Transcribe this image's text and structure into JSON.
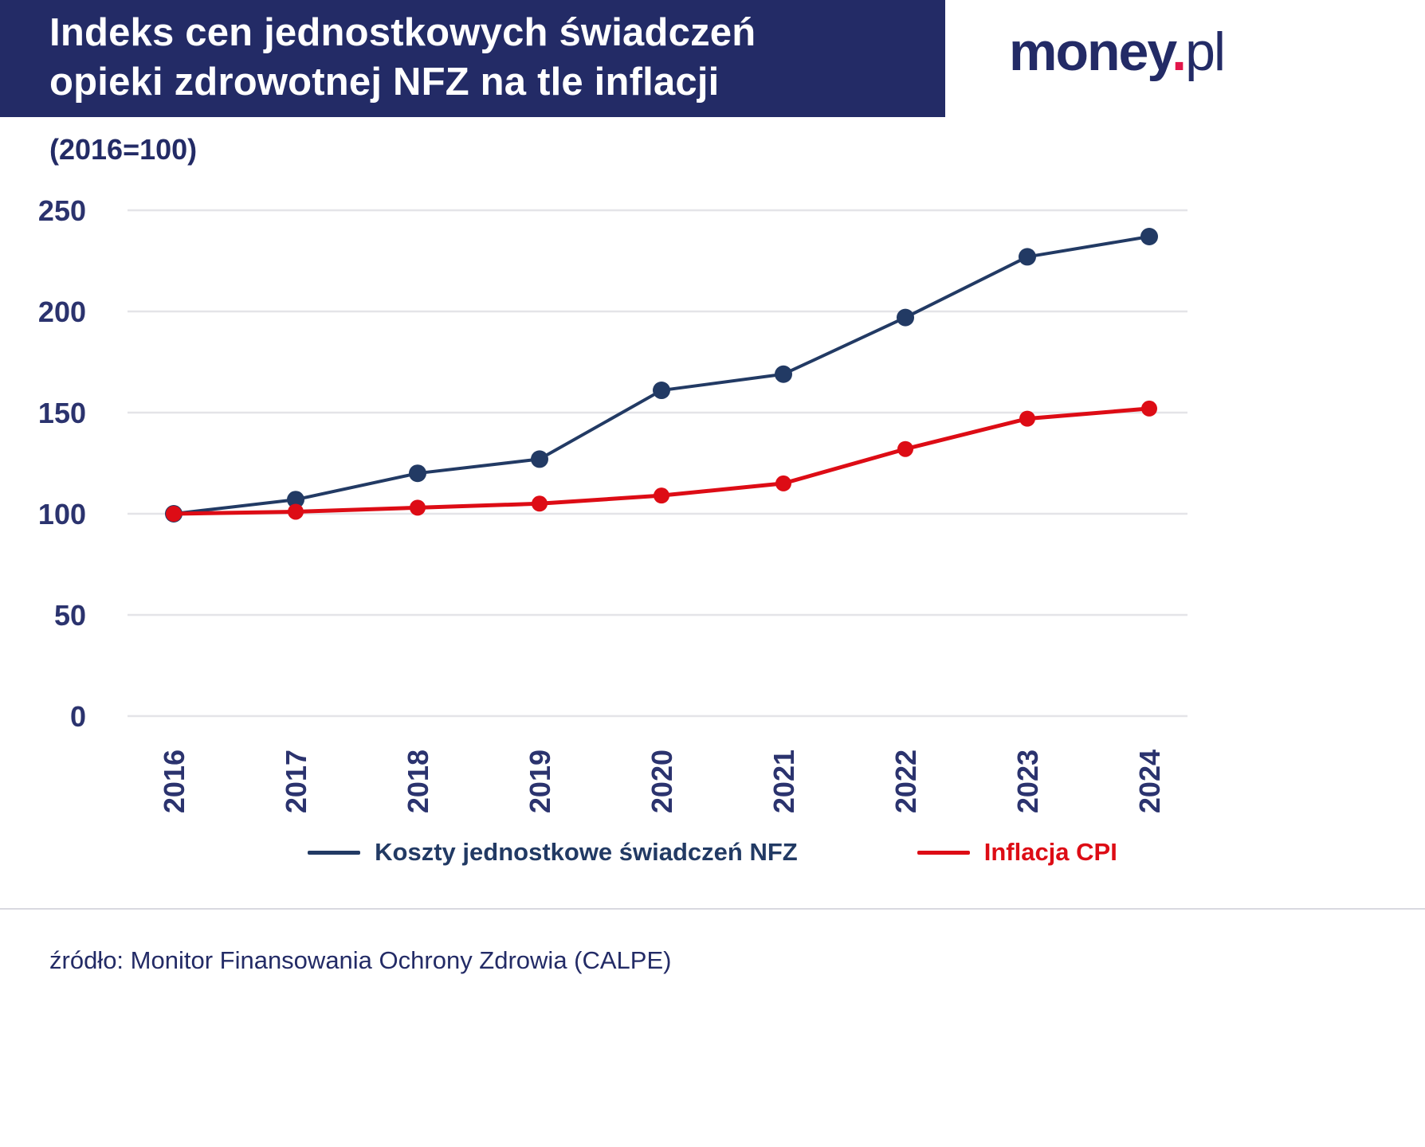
{
  "header": {
    "title_line1": "Indeks cen jednostkowych świadczeń",
    "title_line2": "opieki zdrowotnej NFZ na tle inflacji",
    "logo": {
      "part1": "money",
      "dot": ".",
      "part2": "pl"
    }
  },
  "chart_data": {
    "type": "line",
    "title": "Indeks cen jednostkowych świadczeń opieki zdrowotnej NFZ na tle inflacji",
    "subtitle": "(2016=100)",
    "categories": [
      "2016",
      "2017",
      "2018",
      "2019",
      "2020",
      "2021",
      "2022",
      "2023",
      "2024"
    ],
    "series": [
      {
        "name": "Koszty jednostkowe świadczeń NFZ",
        "color": "#223a64",
        "values": [
          100,
          107,
          120,
          127,
          161,
          169,
          197,
          227,
          237
        ],
        "marker_radius": 11,
        "line_width": 4
      },
      {
        "name": "Inflacja CPI",
        "color": "#dd0c15",
        "values": [
          100,
          101,
          103,
          105,
          109,
          115,
          132,
          147,
          152
        ],
        "marker_radius": 10,
        "line_width": 5
      }
    ],
    "ylim": [
      0,
      250
    ],
    "yticks": [
      0,
      50,
      100,
      150,
      200,
      250
    ],
    "grid": "horizontal",
    "legend_position": "bottom",
    "x_tick_rotation": -90
  },
  "footer": {
    "source": "źródło: Monitor Finansowania Ochrony Zdrowia (CALPE)"
  },
  "colors": {
    "header_bg": "#232b66",
    "navy": "#232b66",
    "tick_label": "#2b336e",
    "grid": "#e4e4e8",
    "logo_dot": "#e2164a",
    "divider": "#d9d9e0"
  }
}
